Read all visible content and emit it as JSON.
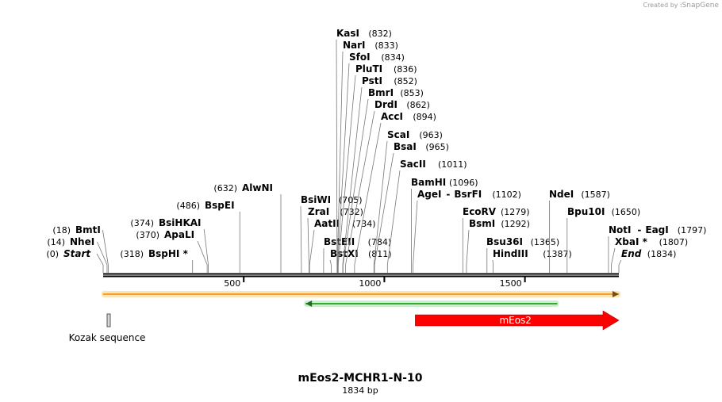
{
  "credit": {
    "prefix": "Created by",
    "brand": "SnapGene"
  },
  "map": {
    "title": "mEos2-MCHR1-N-10",
    "length_label": "1834 bp",
    "length_bp": 1834,
    "colors": {
      "backbone": "#000000",
      "orf_orange": "#f0a030",
      "orf_orange_glow": "#fde4b0",
      "orf_green": "#33aa33",
      "orf_green_glow": "#cdeecd",
      "feature_red": "#ff0000",
      "kozak_fill": "#d8d8d8"
    },
    "ticks": [
      {
        "bp": 500,
        "label": "500"
      },
      {
        "bp": 1000,
        "label": "1000"
      },
      {
        "bp": 1500,
        "label": "1500"
      }
    ],
    "sites": [
      {
        "name": "Start",
        "pos": "(0)",
        "bp": 0,
        "italic": true
      },
      {
        "name": "NheI",
        "pos": "(14)",
        "bp": 14
      },
      {
        "name": "BmtI",
        "pos": "(18)",
        "bp": 18
      },
      {
        "name": "BspHI *",
        "pos": "(318)",
        "bp": 318
      },
      {
        "name": "ApaLI",
        "pos": "(370)",
        "bp": 370
      },
      {
        "name": "BsiHKAI",
        "pos": "(374)",
        "bp": 374
      },
      {
        "name": "BspEI",
        "pos": "(486)",
        "bp": 486
      },
      {
        "name": "AlwNI",
        "pos": "(632)",
        "bp": 632
      },
      {
        "name": "BsiWI",
        "pos": "(705)",
        "bp": 705
      },
      {
        "name": "ZraI",
        "pos": "(732)",
        "bp": 732
      },
      {
        "name": "AatII",
        "pos": "(734)",
        "bp": 734
      },
      {
        "name": "BstEII",
        "pos": "(784)",
        "bp": 784
      },
      {
        "name": "BstXI",
        "pos": "(811)",
        "bp": 811
      },
      {
        "name": "KasI",
        "pos": "(832)",
        "bp": 832
      },
      {
        "name": "NarI",
        "pos": "(833)",
        "bp": 833
      },
      {
        "name": "SfoI",
        "pos": "(834)",
        "bp": 834
      },
      {
        "name": "PluTI",
        "pos": "(836)",
        "bp": 836
      },
      {
        "name": "PstI",
        "pos": "(852)",
        "bp": 852
      },
      {
        "name": "BmrI",
        "pos": "(853)",
        "bp": 853
      },
      {
        "name": "DrdI",
        "pos": "(862)",
        "bp": 862
      },
      {
        "name": "AccI",
        "pos": "(894)",
        "bp": 894
      },
      {
        "name": "ScaI",
        "pos": "(963)",
        "bp": 963
      },
      {
        "name": "BsaI",
        "pos": "(965)",
        "bp": 965
      },
      {
        "name": "SacII",
        "pos": "(1011)",
        "bp": 1011
      },
      {
        "name": "BamHI",
        "pos": "(1096)",
        "bp": 1096
      },
      {
        "name": "AgeI",
        "sep": "-",
        "name2": "BsrFI",
        "pos": "(1102)",
        "bp": 1102
      },
      {
        "name": "EcoRV",
        "pos": "(1279)",
        "bp": 1279
      },
      {
        "name": "BsmI",
        "pos": "(1292)",
        "bp": 1292
      },
      {
        "name": "Bsu36I",
        "pos": "(1365)",
        "bp": 1365
      },
      {
        "name": "HindIII",
        "pos": "(1387)",
        "bp": 1387
      },
      {
        "name": "NdeI",
        "pos": "(1587)",
        "bp": 1587
      },
      {
        "name": "Bpu10I",
        "pos": "(1650)",
        "bp": 1650
      },
      {
        "name": "NotI",
        "sep": "-",
        "name2": "EagI",
        "pos": "(1797)",
        "bp": 1797
      },
      {
        "name": "XbaI *",
        "pos": "(1807)",
        "bp": 1807
      },
      {
        "name": "End",
        "pos": "(1834)",
        "bp": 1834,
        "italic": true
      }
    ],
    "orfs": [
      {
        "name": "orf-forward-orange",
        "start_bp": 0,
        "end_bp": 1834,
        "direction": "forward",
        "color": "orange"
      },
      {
        "name": "orf-reverse-green",
        "start_bp": 720,
        "end_bp": 1615,
        "direction": "reverse",
        "color": "green"
      }
    ],
    "features": [
      {
        "name": "mEos2",
        "start_bp": 1110,
        "end_bp": 1834,
        "direction": "forward"
      },
      {
        "name": "Kozak sequence",
        "start_bp": 20,
        "end_bp": 30,
        "direction": "none"
      }
    ]
  }
}
